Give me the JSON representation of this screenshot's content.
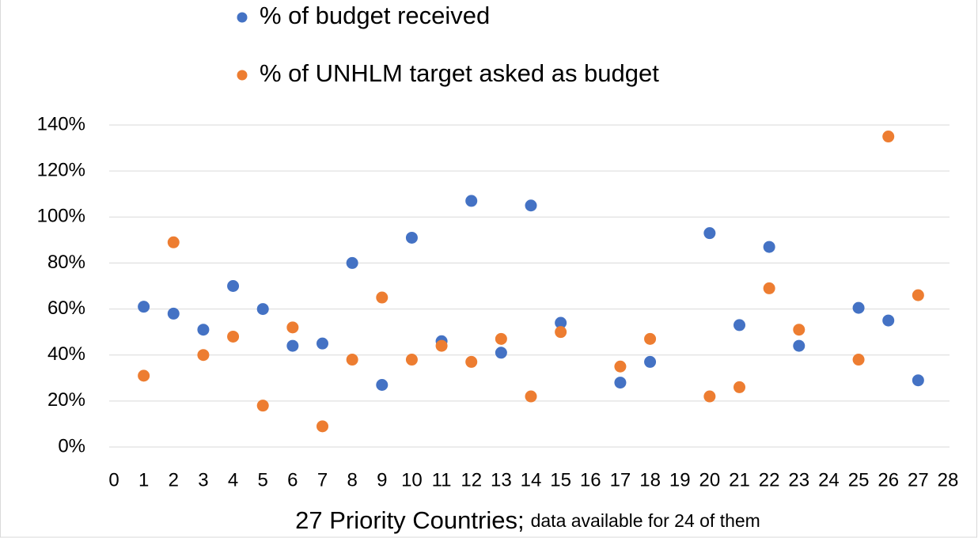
{
  "chart_data": {
    "type": "scatter",
    "x_label": "27 Priority Countries;",
    "x_label_note": "data available for 24 of them",
    "series": [
      {
        "name": "% of budget received",
        "color": "#4472c4",
        "x": [
          1,
          2,
          3,
          4,
          5,
          6,
          7,
          8,
          9,
          10,
          11,
          12,
          13,
          14,
          15,
          17,
          18,
          20,
          21,
          22,
          23,
          25,
          26,
          27
        ],
        "values": [
          61,
          58,
          51,
          70,
          60,
          44,
          45,
          80,
          27,
          91,
          46,
          107,
          41,
          105,
          54,
          28,
          37,
          93,
          53,
          87,
          44,
          60.5,
          55,
          29
        ]
      },
      {
        "name": "% of UNHLM target asked as budget",
        "color": "#ed7d31",
        "x": [
          1,
          2,
          3,
          4,
          5,
          6,
          7,
          8,
          9,
          10,
          11,
          12,
          13,
          14,
          15,
          17,
          18,
          20,
          21,
          22,
          23,
          25,
          26,
          27
        ],
        "values": [
          31,
          89,
          40,
          48,
          18,
          52,
          9,
          38,
          65,
          38,
          44,
          37,
          47,
          22,
          50,
          35,
          47,
          22,
          26,
          69,
          51,
          38,
          135,
          66
        ]
      }
    ],
    "xlim": [
      0,
      28
    ],
    "xticks": [
      0,
      1,
      2,
      3,
      4,
      5,
      6,
      7,
      8,
      9,
      10,
      11,
      12,
      13,
      14,
      15,
      16,
      17,
      18,
      19,
      20,
      21,
      22,
      23,
      24,
      25,
      26,
      27,
      28
    ],
    "ylim": [
      0,
      140
    ],
    "yticks": [
      {
        "value": 0,
        "label": "0%"
      },
      {
        "value": 20,
        "label": "20%"
      },
      {
        "value": 40,
        "label": "40%"
      },
      {
        "value": 60,
        "label": "60%"
      },
      {
        "value": 80,
        "label": "80%"
      },
      {
        "value": 100,
        "label": "100%"
      },
      {
        "value": 120,
        "label": "120%"
      },
      {
        "value": 140,
        "label": "140%"
      }
    ],
    "grid": true
  }
}
